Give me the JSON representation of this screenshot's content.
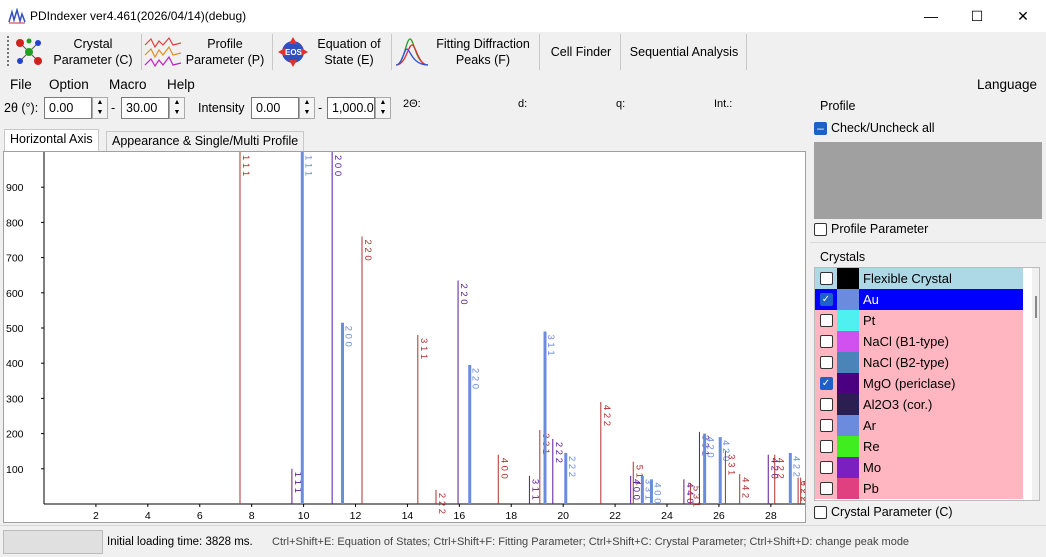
{
  "window": {
    "title": "PDIndexer   ver4.461(2026/04/14)(debug)",
    "minimize": "—",
    "maximize": "☐",
    "close": "✕"
  },
  "toolbar": {
    "items": [
      {
        "line1": "Crystal",
        "line2": "Parameter (C)"
      },
      {
        "line1": "Profile",
        "line2": "Parameter (P)"
      },
      {
        "line1": "Equation of",
        "line2": "State (E)"
      },
      {
        "line1": "Fitting Diffraction",
        "line2": "Peaks (F)"
      },
      {
        "line1": "Cell Finder",
        "line2": ""
      },
      {
        "line1": "Sequential Analysis",
        "line2": ""
      }
    ]
  },
  "menu": {
    "items": [
      "File",
      "Option",
      "Macro",
      "Help"
    ],
    "language": "Language"
  },
  "controls": {
    "two_theta_label": "2θ (°):",
    "min": "0.00",
    "dash": "-",
    "max": "30.00",
    "intensity_label": "Intensity",
    "int_min": "0.00",
    "int_max": "1,000.0",
    "readout_2theta": "2Θ:",
    "readout_d": "d:",
    "readout_q": "q:",
    "readout_int": "Int.:"
  },
  "tabs": [
    "Horizontal Axis",
    "Appearance & Single/Multi Profile"
  ],
  "profile_panel": {
    "title": "Profile",
    "check_all": "Check/Uncheck all",
    "profile_parameter": "Profile Parameter"
  },
  "crystals_panel": {
    "title": "Crystals",
    "crystal_parameter": "Crystal Parameter (C)",
    "items": [
      {
        "name": "Flexible Crystal",
        "checked": false,
        "color": "#000000",
        "bg": "#add8e6"
      },
      {
        "name": "Au",
        "checked": true,
        "color": "#6b8cde",
        "bg": "#0000ff",
        "selected": true
      },
      {
        "name": "Pt",
        "checked": false,
        "color": "#4ef0f0",
        "bg": "#ffb6c1"
      },
      {
        "name": "NaCl (B1-type)",
        "checked": false,
        "color": "#d050f0",
        "bg": "#ffb6c1"
      },
      {
        "name": "NaCl (B2-type)",
        "checked": false,
        "color": "#4a84b8",
        "bg": "#ffb6c1"
      },
      {
        "name": "MgO (periclase)",
        "checked": true,
        "color": "#4b0082",
        "bg": "#ffb6c1"
      },
      {
        "name": "Al2O3 (cor.)",
        "checked": false,
        "color": "#2a1f50",
        "bg": "#ffb6c1"
      },
      {
        "name": "Ar",
        "checked": false,
        "color": "#6b8cde",
        "bg": "#ffb6c1"
      },
      {
        "name": "Re",
        "checked": false,
        "color": "#40ee20",
        "bg": "#ffb6c1"
      },
      {
        "name": "Mo",
        "checked": false,
        "color": "#7a20c0",
        "bg": "#ffb6c1"
      },
      {
        "name": "Pb",
        "checked": false,
        "color": "#e04080",
        "bg": "#ffb6c1"
      }
    ]
  },
  "status": {
    "loading": "Initial loading time: 3828 ms.",
    "shortcuts": "Ctrl+Shift+E: Equation of States;  Ctrl+Shift+F: Fitting Parameter;  Ctrl+Shift+C: Crystal Parameter;  Ctrl+Shift+D:  change peak mode"
  },
  "chart_data": {
    "type": "bar",
    "xlim": [
      0,
      29.2
    ],
    "ylim": [
      0,
      1000
    ],
    "x_ticks": [
      2,
      4,
      6,
      8,
      10,
      12,
      14,
      16,
      18,
      20,
      22,
      24,
      26,
      28
    ],
    "y_ticks": [
      100,
      200,
      300,
      400,
      500,
      600,
      700,
      800,
      900
    ],
    "colors": {
      "dark_red": "#b03030",
      "au_blue": "#6b8cde",
      "mgo_purple": "#5a1a9a"
    },
    "peaks": [
      {
        "x": 7.55,
        "y": 1000,
        "label": "1 1 1",
        "color": "#b03030",
        "w": 1
      },
      {
        "x": 9.55,
        "y": 100,
        "label": "1 1 1",
        "color": "#5a1a9a",
        "w": 1
      },
      {
        "x": 9.95,
        "y": 1000,
        "label": "1 1 1",
        "color": "#6b8cde",
        "w": 3
      },
      {
        "x": 11.1,
        "y": 1000,
        "label": "2 0 0",
        "color": "#5a1a9a",
        "w": 1
      },
      {
        "x": 11.5,
        "y": 515,
        "label": "2 0 0",
        "color": "#6b8cde",
        "w": 3
      },
      {
        "x": 12.25,
        "y": 760,
        "label": "2 2 0",
        "color": "#b03030",
        "w": 1
      },
      {
        "x": 14.4,
        "y": 480,
        "label": "3 1 1",
        "color": "#b03030",
        "w": 1
      },
      {
        "x": 15.1,
        "y": 40,
        "label": "2 2 2",
        "color": "#b03030",
        "w": 1
      },
      {
        "x": 15.95,
        "y": 635,
        "label": "2 2 0",
        "color": "#5a1a9a",
        "w": 1
      },
      {
        "x": 16.4,
        "y": 395,
        "label": "2 2 0",
        "color": "#6b8cde",
        "w": 3
      },
      {
        "x": 17.5,
        "y": 140,
        "label": "4 0 0",
        "color": "#b03030",
        "w": 1
      },
      {
        "x": 18.7,
        "y": 80,
        "label": "3 1 1",
        "color": "#5a1a9a",
        "w": 1
      },
      {
        "x": 19.1,
        "y": 210,
        "label": "3 3 1",
        "color": "#b03030",
        "w": 1
      },
      {
        "x": 19.3,
        "y": 490,
        "label": "3 1 1",
        "color": "#6b8cde",
        "w": 3
      },
      {
        "x": 19.6,
        "y": 185,
        "label": "2 2 2",
        "color": "#5a1a9a",
        "w": 1
      },
      {
        "x": 20.1,
        "y": 145,
        "label": "2 2 2",
        "color": "#6b8cde",
        "w": 3
      },
      {
        "x": 21.45,
        "y": 290,
        "label": "4 2 2",
        "color": "#b03030",
        "w": 1
      },
      {
        "x": 22.7,
        "y": 120,
        "label": "5 1 1",
        "color": "#b03030",
        "w": 1
      },
      {
        "x": 22.6,
        "y": 80,
        "label": "4 0 0",
        "color": "#5a1a9a",
        "w": 1
      },
      {
        "x": 23.05,
        "y": 80,
        "label": "3 3 1",
        "color": "#6b8cde",
        "w": 3
      },
      {
        "x": 23.4,
        "y": 70,
        "label": "4 0 0",
        "color": "#6b8cde",
        "w": 3
      },
      {
        "x": 24.65,
        "y": 70,
        "label": "4 4 0",
        "color": "#5a1a9a",
        "w": 1
      },
      {
        "x": 24.9,
        "y": 60,
        "label": "5 3 1",
        "color": "#b03030",
        "w": 1
      },
      {
        "x": 25.25,
        "y": 205,
        "label": "3 3 1",
        "color": "#5a1a9a",
        "w": 1
      },
      {
        "x": 25.45,
        "y": 200,
        "label": "4 2 0",
        "color": "#6b8cde",
        "w": 3
      },
      {
        "x": 26.05,
        "y": 190,
        "label": "4 2 0",
        "color": "#6b8cde",
        "w": 3
      },
      {
        "x": 26.25,
        "y": 150,
        "label": "3 3 1",
        "color": "#b03030",
        "w": 1
      },
      {
        "x": 26.8,
        "y": 85,
        "label": "4 4 2",
        "color": "#b03030",
        "w": 1
      },
      {
        "x": 27.9,
        "y": 140,
        "label": "4 2 0",
        "color": "#5a1a9a",
        "w": 1
      },
      {
        "x": 28.15,
        "y": 140,
        "label": "4 2 2",
        "color": "#b03030",
        "w": 1
      },
      {
        "x": 28.75,
        "y": 145,
        "label": "4 2 2",
        "color": "#6b8cde",
        "w": 3
      },
      {
        "x": 29.05,
        "y": 75,
        "label": "6 2 2",
        "color": "#b03030",
        "w": 1
      },
      {
        "x": 29.15,
        "y": 75,
        "label": "5 3 3",
        "color": "#b03030",
        "w": 1
      }
    ]
  }
}
